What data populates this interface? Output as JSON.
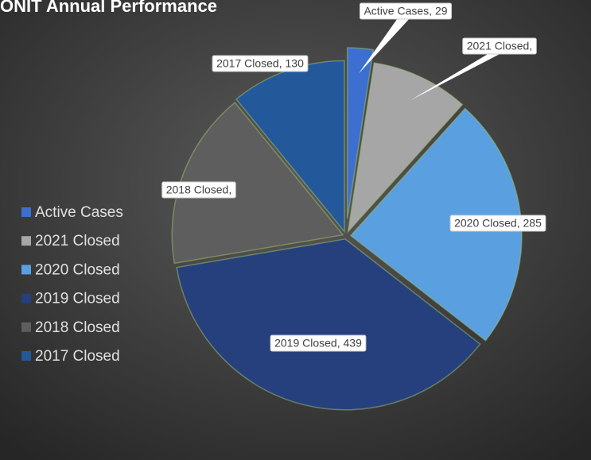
{
  "chart_data": {
    "type": "pie",
    "title": "ONIT Annual Performance",
    "categories": [
      "Active Cases",
      "2021 Closed",
      "2020 Closed",
      "2019 Closed",
      "2018 Closed",
      "2017 Closed"
    ],
    "values": [
      29,
      110,
      285,
      439,
      200,
      130
    ],
    "value_labels": [
      "Active Cases, 29",
      "2021 Closed,",
      "2020 Closed, 285",
      "2019 Closed, 439",
      "2018 Closed,",
      "2017 Closed, 130"
    ],
    "colors": [
      "#3d6fd1",
      "#a6a6a6",
      "#5aa0e0",
      "#26407d",
      "#5e5e5e",
      "#23589a"
    ],
    "legend": "left"
  }
}
